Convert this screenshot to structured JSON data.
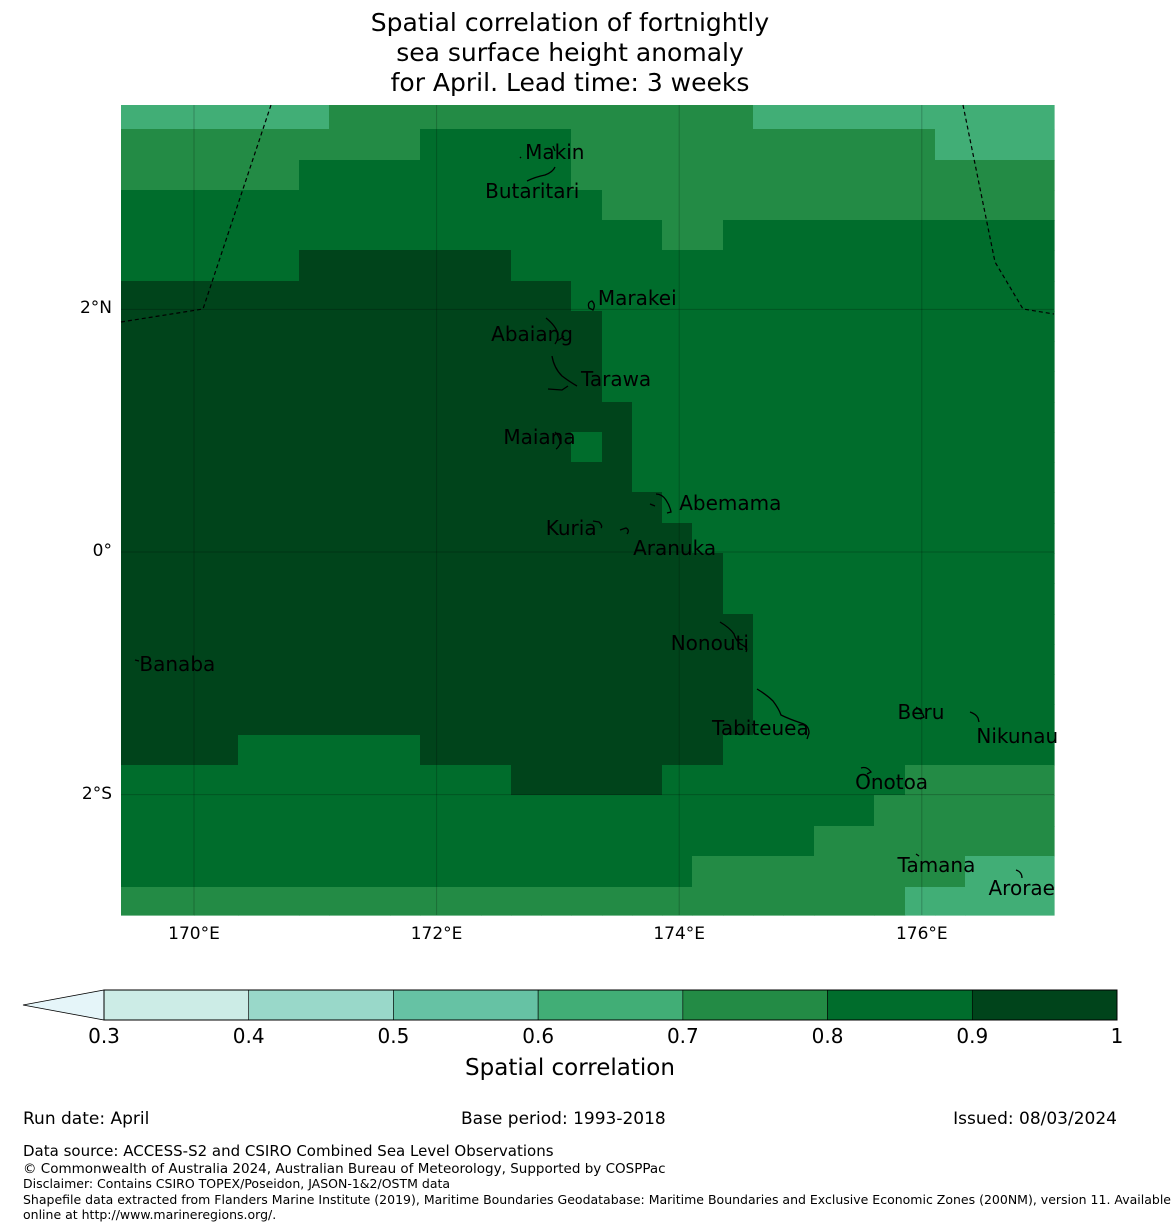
{
  "title_lines": [
    "Spatial correlation of fortnightly",
    "sea surface height anomaly",
    "for April. Lead time: 3 weeks"
  ],
  "map": {
    "lon_range": [
      169.4,
      177.1
    ],
    "lat_range": [
      -3.0,
      3.7
    ],
    "lat_ticks": [
      {
        "value": 2,
        "label": "2°N"
      },
      {
        "value": 0,
        "label": "0°"
      },
      {
        "value": -2,
        "label": "2°S"
      }
    ],
    "lon_ticks": [
      {
        "value": 170,
        "label": "170°E"
      },
      {
        "value": 172,
        "label": "172°E"
      },
      {
        "value": 174,
        "label": "174°E"
      },
      {
        "value": 176,
        "label": "176°E"
      }
    ],
    "places": [
      {
        "name": "Makin",
        "lon": 172.73,
        "lat": 3.3
      },
      {
        "name": "Butaritari",
        "lon": 172.4,
        "lat": 2.98
      },
      {
        "name": "Marakei",
        "lon": 173.33,
        "lat": 2.09
      },
      {
        "name": "Abaiang",
        "lon": 172.45,
        "lat": 1.8
      },
      {
        "name": "Tarawa",
        "lon": 173.19,
        "lat": 1.43
      },
      {
        "name": "Maiana",
        "lon": 172.55,
        "lat": 0.95
      },
      {
        "name": "Abemama",
        "lon": 174.0,
        "lat": 0.4
      },
      {
        "name": "Kuria",
        "lon": 172.9,
        "lat": 0.2
      },
      {
        "name": "Aranuka",
        "lon": 173.62,
        "lat": 0.03
      },
      {
        "name": "Nonouti",
        "lon": 173.93,
        "lat": -0.75
      },
      {
        "name": "Banaba",
        "lon": 169.55,
        "lat": -0.92
      },
      {
        "name": "Beru",
        "lon": 175.8,
        "lat": -1.32
      },
      {
        "name": "Nikunau",
        "lon": 176.45,
        "lat": -1.52
      },
      {
        "name": "Tabiteuea",
        "lon": 174.27,
        "lat": -1.45
      },
      {
        "name": "Onotoa",
        "lon": 175.45,
        "lat": -1.9
      },
      {
        "name": "Tamana",
        "lon": 175.8,
        "lat": -2.58
      },
      {
        "name": "Arorae",
        "lon": 176.55,
        "lat": -2.77
      }
    ]
  },
  "colorbar": {
    "title": "Spatial correlation",
    "ticks": [
      "0.3",
      "0.4",
      "0.5",
      "0.6",
      "0.7",
      "0.8",
      "0.9",
      "1"
    ],
    "under_color": "#e5f5f9",
    "colors": [
      "#ccece6",
      "#99d8c9",
      "#66c2a4",
      "#41ae76",
      "#238b45",
      "#006d2c",
      "#00441b"
    ]
  },
  "footer": {
    "run_date": "Run date: April",
    "base_period": "Base period: 1993-2018",
    "issued": "Issued: 08/03/2024",
    "data_source": "Data source: ACCESS-S2 and CSIRO Combined Sea Level Observations",
    "copyright": "© Commonwealth of Australia 2024, Australian Bureau of Meteorology, Supported by COSPPac",
    "disclaimer": "Disclaimer: Contains CSIRO TOPEX/Poseidon, JASON-1&2/OSTM data",
    "shapefile_1": "Shapefile data extracted from Flanders Marine Institute (2019), Maritime Boundaries Geodatabase: Maritime Boundaries and Exclusive Economic Zones (200NM), version 11. Available",
    "shapefile_2": "online at http://www.marineregions.org/."
  }
}
